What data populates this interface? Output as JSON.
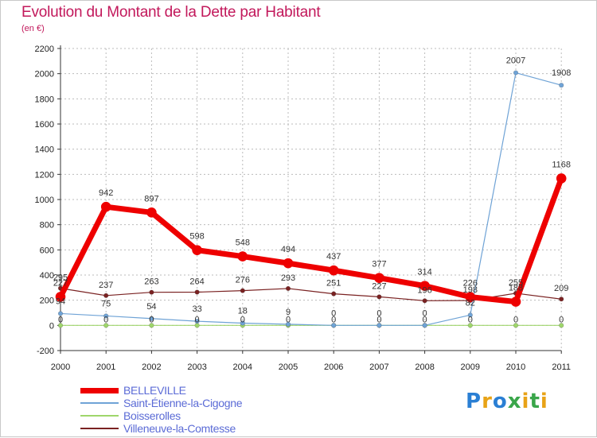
{
  "title": "Evolution du Montant de la Dette par Habitant",
  "subtitle": "(en €)",
  "logo": {
    "text": "Proxiti",
    "letters": [
      {
        "ch": "P",
        "color": "#2a7fd4"
      },
      {
        "ch": "r",
        "color": "#e8a317"
      },
      {
        "ch": "o",
        "color": "#2a7fd4"
      },
      {
        "ch": "x",
        "color": "#3aa64a"
      },
      {
        "ch": "i",
        "color": "#e8a317"
      },
      {
        "ch": "t",
        "color": "#3aa64a"
      },
      {
        "ch": "i",
        "color": "#e8a317"
      }
    ]
  },
  "chart_data": {
    "type": "line",
    "title": "Evolution du Montant de la Dette par Habitant",
    "subtitle": "(en €)",
    "xlabel": "",
    "ylabel": "",
    "categories": [
      "2000",
      "2001",
      "2002",
      "2003",
      "2004",
      "2005",
      "2006",
      "2007",
      "2008",
      "2009",
      "2010",
      "2011"
    ],
    "ylim": [
      -200,
      2200
    ],
    "yticks": [
      -200,
      0,
      200,
      400,
      600,
      800,
      1000,
      1200,
      1400,
      1600,
      1800,
      2000,
      2200
    ],
    "grid": true,
    "legend_position": "bottom-left",
    "series": [
      {
        "name": "BELLEVILLE",
        "color": "#ee0000",
        "values": [
          227,
          942,
          897,
          598,
          548,
          494,
          437,
          377,
          314,
          226,
          188,
          1168
        ],
        "labels": [
          "227",
          "942",
          "897",
          "598",
          "548",
          "494",
          "437",
          "377",
          "314",
          "226",
          "188",
          "1168"
        ]
      },
      {
        "name": "Saint-Étienne-la-Cigogne",
        "color": "#6fa3d6",
        "values": [
          94,
          75,
          54,
          33,
          18,
          9,
          0,
          0,
          0,
          82,
          2007,
          1908
        ],
        "labels": [
          "94",
          "75",
          "54",
          "33",
          "18",
          "9",
          "0",
          "0",
          "0",
          "82",
          "2007",
          "1908"
        ]
      },
      {
        "name": "Boisserolles",
        "color": "#9fd66b",
        "values": [
          0,
          0,
          0,
          0,
          0,
          0,
          0,
          0,
          0,
          0,
          0,
          0
        ],
        "labels": [
          "0",
          "0",
          "0",
          "0",
          "0",
          "0",
          "0",
          "0",
          "0",
          "0",
          "0",
          "0"
        ]
      },
      {
        "name": "Villeneuve-la-Comtesse",
        "color": "#7a2222",
        "values": [
          295,
          237,
          263,
          264,
          276,
          293,
          251,
          227,
          196,
          198,
          255,
          209
        ],
        "labels": [
          "295",
          "237",
          "263",
          "264",
          "276",
          "293",
          "251",
          "227",
          "196",
          "198",
          "255",
          "209"
        ]
      }
    ]
  }
}
